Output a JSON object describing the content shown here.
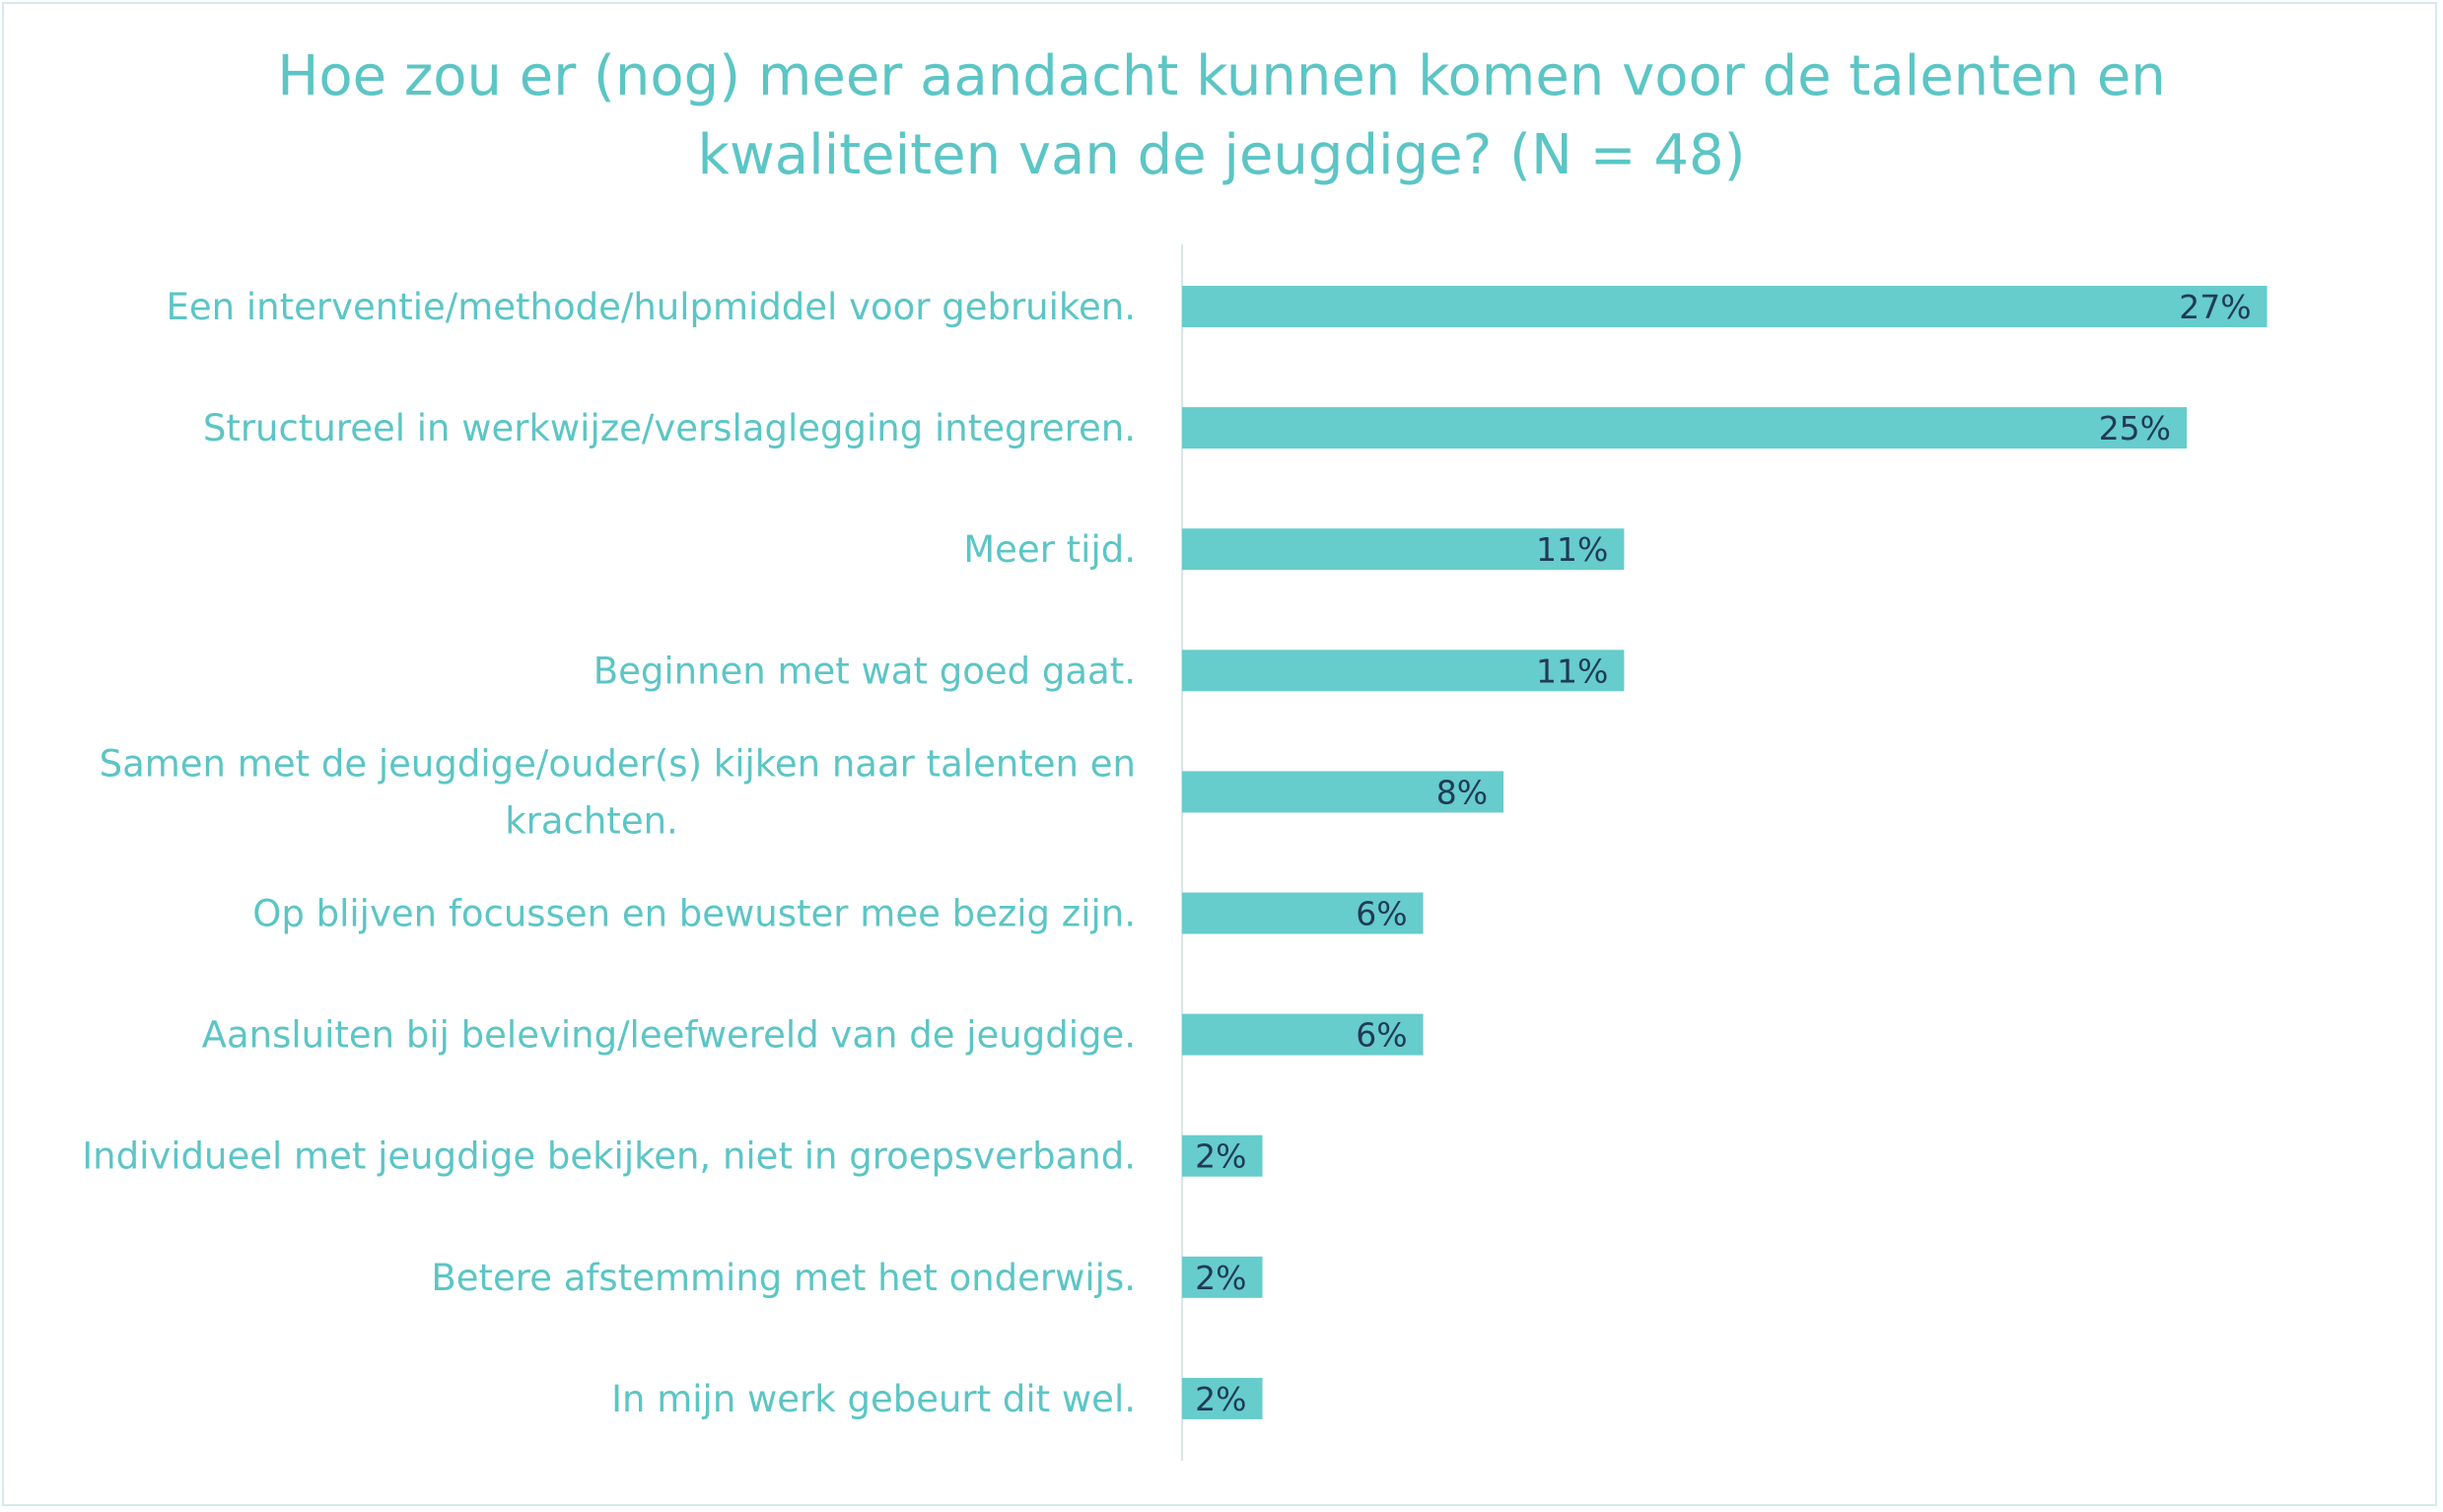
{
  "chart_data": {
    "type": "bar",
    "orientation": "horizontal",
    "title_lines": [
      "Hoe zou er (nog) meer aandacht kunnen komen voor de talenten en",
      "kwaliteiten van de jeugdige? (N = 48)"
    ],
    "categories": [
      [
        "Een interventie/methode/hulpmiddel voor gebruiken."
      ],
      [
        "Structureel in werkwijze/verslaglegging integreren."
      ],
      [
        "Meer tijd."
      ],
      [
        "Beginnen met wat goed gaat."
      ],
      [
        "Samen met de jeugdige/ouder(s) kijken naar talenten en",
        "krachten."
      ],
      [
        "Op blijven focussen en bewuster mee bezig zijn."
      ],
      [
        "Aansluiten bij beleving/leefwereld van de jeugdige."
      ],
      [
        "Individueel met jeugdige bekijken, niet in groepsverband."
      ],
      [
        "Betere afstemming met het onderwijs."
      ],
      [
        "In mijn werk gebeurt dit wel."
      ]
    ],
    "values": [
      27,
      25,
      11,
      11,
      8,
      6,
      6,
      2,
      2,
      2
    ],
    "value_labels": [
      "27%",
      "25%",
      "11%",
      "11%",
      "8%",
      "6%",
      "6%",
      "2%",
      "2%",
      "2%"
    ],
    "unit": "%",
    "xlim": [
      0,
      28
    ],
    "grid": false,
    "legend": "none",
    "colors": {
      "bar": "#66cccc",
      "title": "#5cc5c5",
      "category_text": "#5cc5c5",
      "value_text": "#1f3b57",
      "axis": "#d9e6e6",
      "border": "#d6eaea"
    }
  }
}
